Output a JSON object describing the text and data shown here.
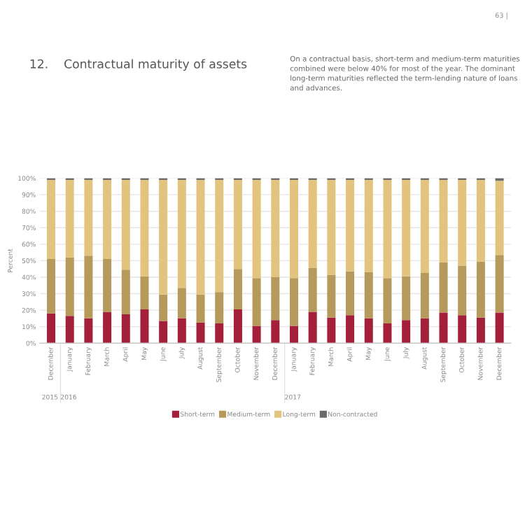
{
  "chart_data": {
    "type": "bar",
    "stacked": true,
    "title": "12.    Contractual maturity of assets",
    "subtitle": "On a contractual basis, short-term and medium-term maturities combined were below 40% for most of the year. The dominant long-term maturities reflected the term-lending nature of loans and advances.",
    "ylabel": "Percent",
    "annotations": [
      "63 |",
      "2015",
      "2016",
      "2017"
    ],
    "categories": [
      "December",
      "January",
      "February",
      "March",
      "April",
      "May",
      "June",
      "July",
      "August",
      "September",
      "October",
      "November",
      "December",
      "January",
      "February",
      "March",
      "April",
      "May",
      "June",
      "July",
      "August",
      "September",
      "October",
      "November",
      "December"
    ],
    "series": [
      {
        "name": "Short-term",
        "color": "#a4203a",
        "values": [
          18,
          16.5,
          15,
          19,
          17.5,
          20.5,
          13.5,
          15,
          12.5,
          12,
          20.5,
          10.5,
          14,
          10.5,
          19,
          15.5,
          17,
          15,
          12,
          14,
          15,
          18.5,
          17,
          15.5,
          18.5
        ]
      },
      {
        "name": "Medium-term",
        "color": "#b59a5c",
        "values": [
          33,
          35.5,
          38,
          32,
          27,
          20,
          16,
          18.5,
          17,
          19,
          24.5,
          29,
          26,
          29,
          26.5,
          26,
          26.5,
          28,
          27.5,
          26.5,
          27.5,
          30.5,
          30,
          34,
          35
        ]
      },
      {
        "name": "Long-term",
        "color": "#e3c47e",
        "values": [
          48,
          47,
          46,
          48,
          54.5,
          58.5,
          69.5,
          65.5,
          69.5,
          68,
          54,
          59.5,
          59,
          59.5,
          53.5,
          57.5,
          55.5,
          56,
          59.5,
          58.5,
          56.5,
          50,
          52,
          49.5,
          45
        ]
      },
      {
        "name": "Non-contracted",
        "color": "#6b6b6b",
        "values": [
          1,
          1,
          1,
          1,
          1,
          1,
          1,
          1,
          1,
          1,
          1,
          1,
          1,
          1,
          1,
          1,
          1,
          1,
          1,
          1,
          1,
          1,
          1,
          1,
          1.5
        ]
      }
    ],
    "ylim": [
      0,
      100
    ],
    "yticks": [
      {
        "value": 0,
        "label": "0%"
      },
      {
        "value": 10,
        "label": "10%"
      },
      {
        "value": 20,
        "label": "20%"
      },
      {
        "value": 30,
        "label": "30%"
      },
      {
        "value": 40,
        "label": "40%"
      },
      {
        "value": 50,
        "label": "50%"
      },
      {
        "value": 60,
        "label": "60%"
      },
      {
        "value": 70,
        "label": "70%"
      },
      {
        "value": 80,
        "label": "80%"
      },
      {
        "value": 90,
        "label": "90%"
      },
      {
        "value": 100,
        "label": "100%"
      }
    ],
    "grid": "y",
    "legend": "bottom"
  }
}
